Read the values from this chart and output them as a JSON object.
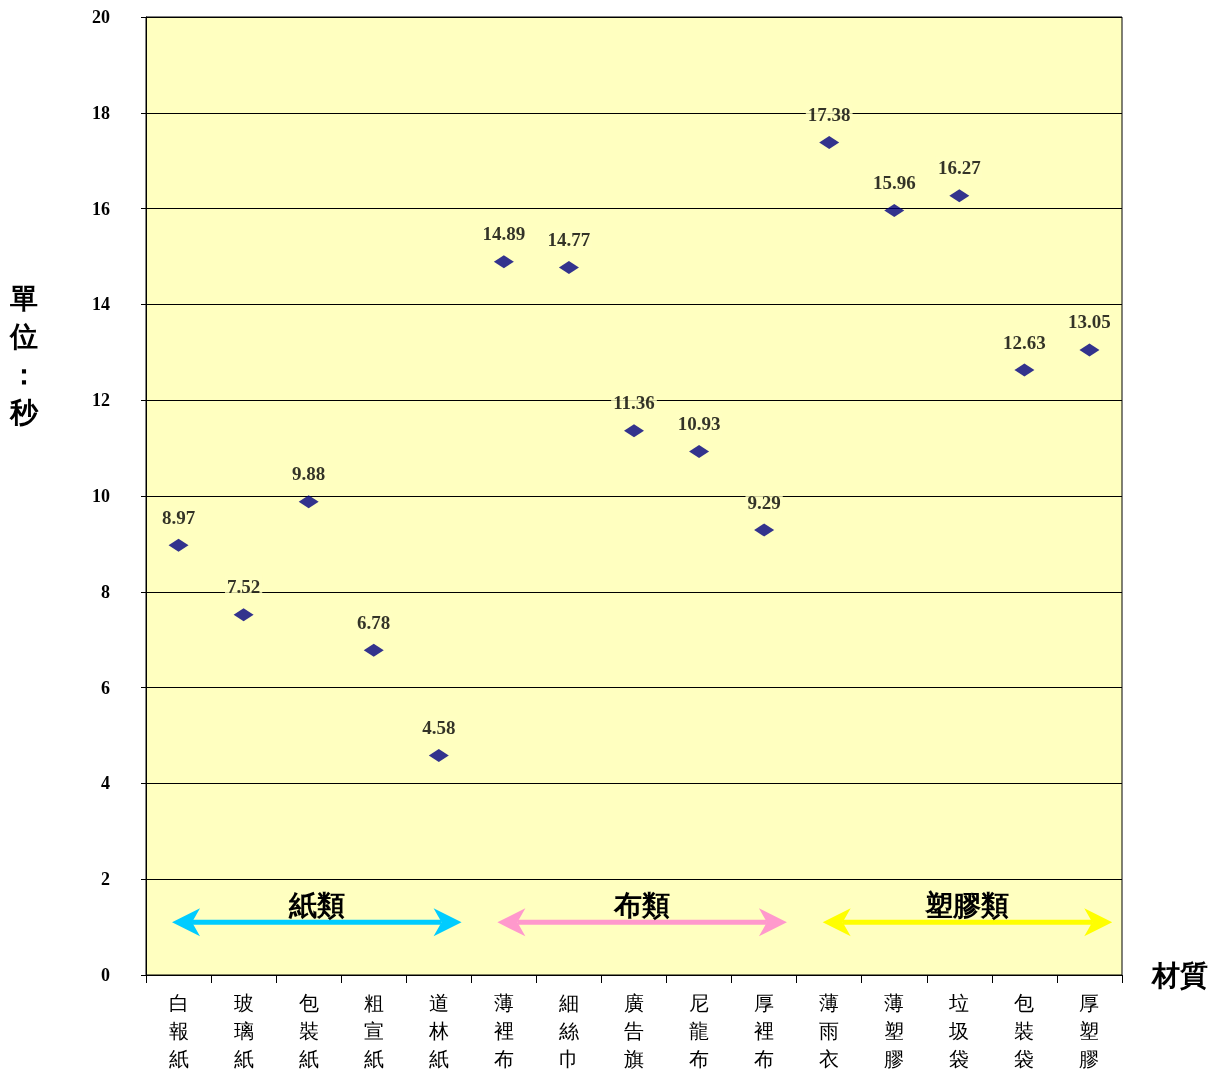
{
  "chart_data": {
    "type": "scatter",
    "xlabel": "材質",
    "ylabel": "單位：秒",
    "categories": [
      "白報紙",
      "玻璃紙",
      "包裝紙",
      "粗宣紙",
      "道林紙",
      "薄裡布",
      "細絲巾",
      "廣告旗",
      "尼龍布",
      "厚裡布",
      "薄雨衣",
      "薄塑膠",
      "垃圾袋",
      "包裝袋",
      "厚塑膠"
    ],
    "values": [
      8.97,
      7.52,
      9.88,
      6.78,
      4.58,
      14.89,
      14.77,
      11.36,
      10.93,
      9.29,
      17.38,
      15.96,
      16.27,
      12.63,
      13.05
    ],
    "color": "#000080",
    "marker": "diamond",
    "data_labels": true,
    "grid": "y",
    "ylim": [
      0,
      20
    ],
    "yticks": [
      0,
      2,
      4,
      6,
      8,
      10,
      12,
      14,
      16,
      18,
      20
    ],
    "annotations": [
      "紙類",
      "布類",
      "塑膠類"
    ]
  }
}
